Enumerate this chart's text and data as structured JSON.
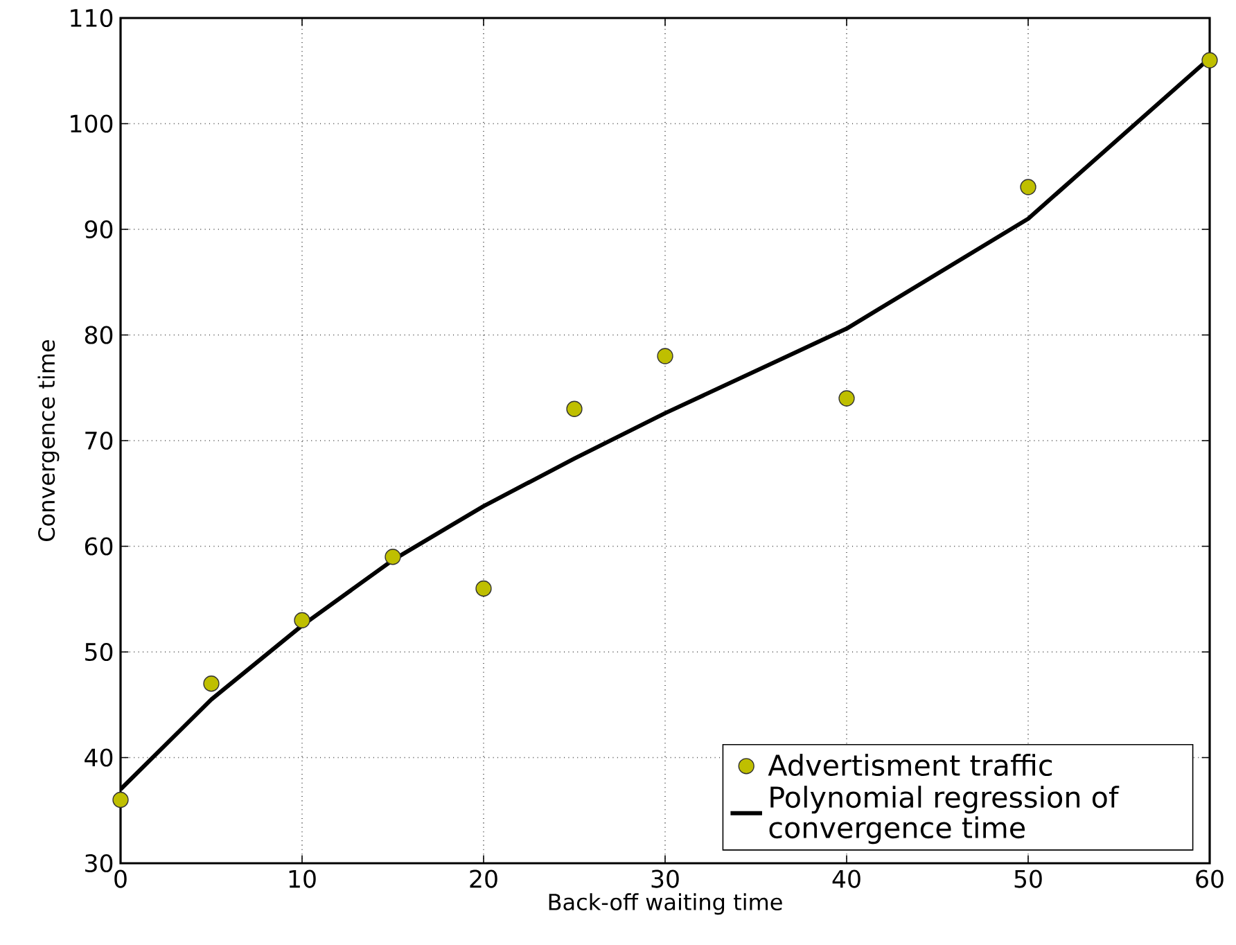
{
  "chart_data": {
    "type": "scatter",
    "xlabel": "Back-off waiting time",
    "ylabel": "Convergence time",
    "xlim": [
      0,
      60
    ],
    "ylim": [
      30,
      110
    ],
    "xticks": [
      0,
      10,
      20,
      30,
      40,
      50,
      60
    ],
    "yticks": [
      30,
      40,
      50,
      60,
      70,
      80,
      90,
      100,
      110
    ],
    "grid": true,
    "legend": "bottom right",
    "series": [
      {
        "name": "Advertisment traffic",
        "marker": "circle",
        "color": "#bfbf00",
        "x": [
          0,
          5,
          10,
          15,
          20,
          25,
          30,
          40,
          50,
          60
        ],
        "values": [
          36,
          47,
          53,
          59,
          56,
          73,
          78,
          74,
          94,
          106
        ]
      },
      {
        "name": "Polynomial regression of convergence time",
        "type": "line",
        "marker": "none",
        "line_style": "solid",
        "color": "#000000",
        "x": [
          0,
          5,
          10,
          15,
          20,
          25,
          30,
          40,
          50,
          60
        ],
        "values": [
          37,
          45.5,
          52.5,
          58.7,
          63.8,
          68.3,
          72.6,
          80.6,
          91,
          106.2
        ]
      }
    ]
  }
}
